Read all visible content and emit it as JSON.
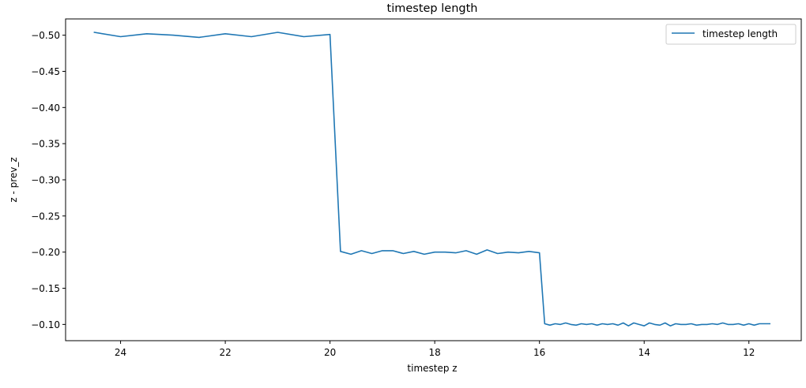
{
  "chart_data": {
    "type": "line",
    "title": "timestep length",
    "xlabel": "timestep z",
    "ylabel": "z - prev_z",
    "xlim": [
      25.05,
      11.0
    ],
    "ylim": [
      -0.0775,
      -0.5225
    ],
    "x_inverted": true,
    "y_inverted": true,
    "x_ticks": [
      24,
      22,
      20,
      18,
      16,
      14,
      12
    ],
    "x_tick_labels": [
      "24",
      "22",
      "20",
      "18",
      "16",
      "14",
      "12"
    ],
    "y_ticks": [
      -0.5,
      -0.45,
      -0.4,
      -0.35,
      -0.3,
      -0.25,
      -0.2,
      -0.15,
      -0.1
    ],
    "y_tick_labels": [
      "−0.50",
      "−0.45",
      "−0.40",
      "−0.35",
      "−0.30",
      "−0.25",
      "−0.20",
      "−0.15",
      "−0.10"
    ],
    "grid": false,
    "legend": {
      "placement": "top-right",
      "entries": [
        "timestep length"
      ]
    },
    "series": [
      {
        "name": "timestep length",
        "color": "#1f77b4",
        "x": [
          24.5,
          24.0,
          23.5,
          23.0,
          22.5,
          22.0,
          21.5,
          21.0,
          20.5,
          20.0,
          19.8,
          19.6,
          19.4,
          19.2,
          19.0,
          18.8,
          18.6,
          18.4,
          18.2,
          18.0,
          17.8,
          17.6,
          17.4,
          17.2,
          17.0,
          16.8,
          16.6,
          16.4,
          16.2,
          16.0,
          15.9,
          15.8,
          15.7,
          15.6,
          15.5,
          15.4,
          15.3,
          15.2,
          15.1,
          15.0,
          14.9,
          14.8,
          14.7,
          14.6,
          14.5,
          14.4,
          14.3,
          14.2,
          14.1,
          14.0,
          13.9,
          13.8,
          13.7,
          13.6,
          13.5,
          13.4,
          13.3,
          13.2,
          13.1,
          13.0,
          12.9,
          12.8,
          12.7,
          12.6,
          12.5,
          12.4,
          12.3,
          12.2,
          12.1,
          12.0,
          11.9,
          11.8,
          11.7,
          11.6
        ],
        "y": [
          -0.504,
          -0.498,
          -0.502,
          -0.5,
          -0.497,
          -0.502,
          -0.498,
          -0.504,
          -0.498,
          -0.501,
          -0.201,
          -0.197,
          -0.202,
          -0.198,
          -0.202,
          -0.202,
          -0.198,
          -0.201,
          -0.197,
          -0.2,
          -0.2,
          -0.199,
          -0.202,
          -0.197,
          -0.203,
          -0.198,
          -0.2,
          -0.199,
          -0.201,
          -0.199,
          -0.101,
          -0.099,
          -0.101,
          -0.1,
          -0.102,
          -0.1,
          -0.099,
          -0.101,
          -0.1,
          -0.101,
          -0.099,
          -0.101,
          -0.1,
          -0.101,
          -0.099,
          -0.102,
          -0.098,
          -0.102,
          -0.1,
          -0.098,
          -0.102,
          -0.1,
          -0.099,
          -0.102,
          -0.098,
          -0.101,
          -0.1,
          -0.1,
          -0.101,
          -0.099,
          -0.1,
          -0.1,
          -0.101,
          -0.1,
          -0.102,
          -0.1,
          -0.1,
          -0.101,
          -0.099,
          -0.101,
          -0.099,
          -0.101,
          -0.101,
          -0.101
        ]
      }
    ]
  }
}
